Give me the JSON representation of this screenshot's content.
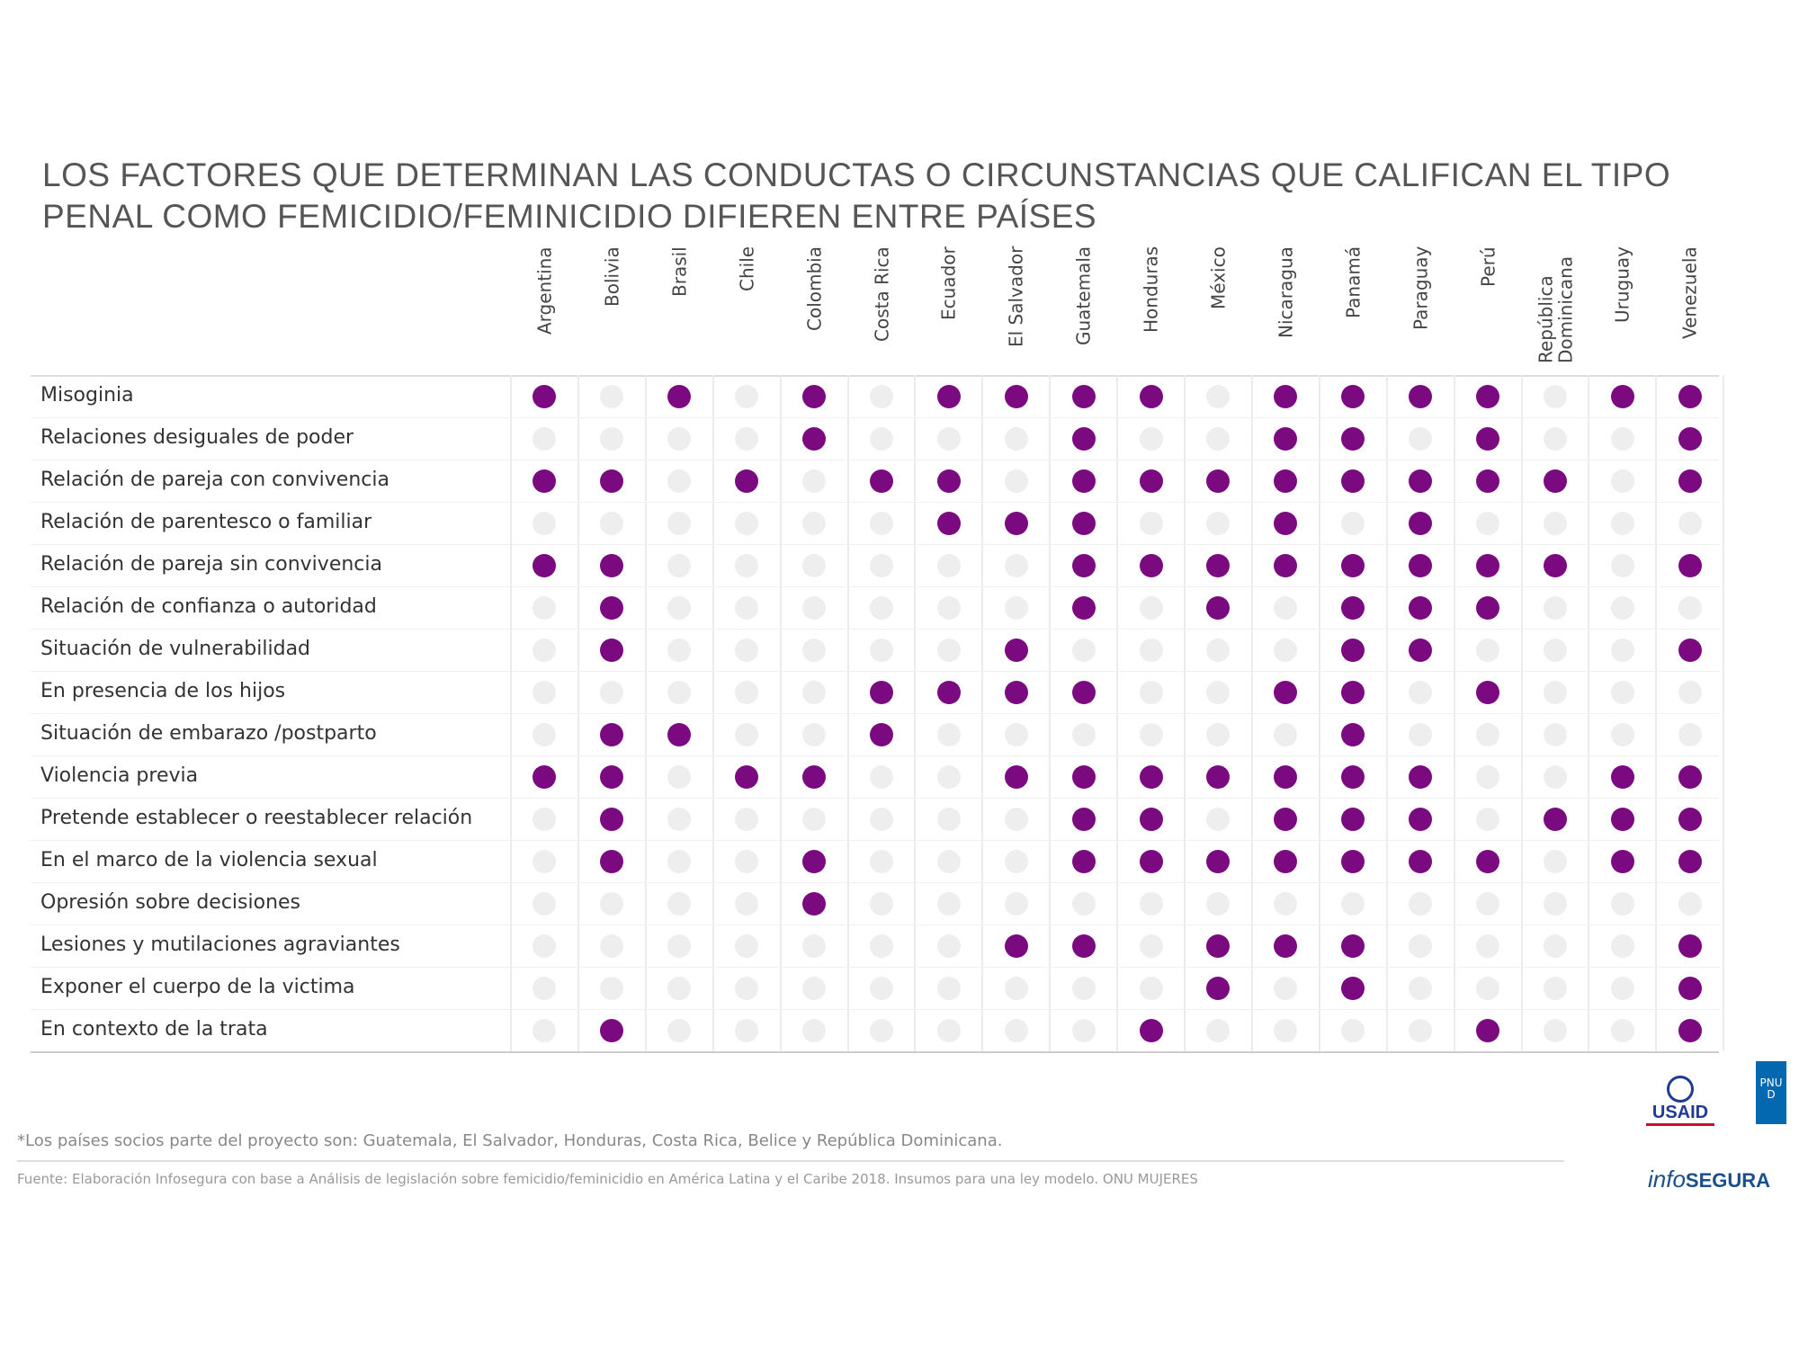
{
  "chart_data": {
    "type": "dot-matrix",
    "title": "LOS FACTORES QUE DETERMINAN LAS CONDUCTAS O CIRCUNSTANCIAS QUE CALIFICAN EL TIPO PENAL COMO FEMICIDIO/FEMINICIDIO DIFIEREN ENTRE PAÍSES",
    "columns": [
      "Argentina",
      "Bolivia",
      "Brasil",
      "Chile",
      "Colombia",
      "Costa Rica",
      "Ecuador",
      "El Salvador",
      "Guatemala",
      "Honduras",
      "México",
      "Nicaragua",
      "Panamá",
      "Paraguay",
      "Perú",
      "República Dominicana",
      "Uruguay",
      "Venezuela"
    ],
    "rows": [
      "Misoginia",
      "Relaciones desiguales de poder",
      "Relación de pareja con convivencia",
      "Relación de parentesco o familiar",
      "Relación de pareja sin convivencia",
      "Relación de confianza o autoridad",
      "Situación de vulnerabilidad",
      "En presencia de los hijos",
      "Situación de embarazo /postparto",
      "Violencia previa",
      "Pretende establecer o reestablecer relación",
      "En el marco de la violencia sexual",
      "Opresión sobre decisiones",
      "Lesiones y mutilaciones agraviantes",
      "Exponer el cuerpo de la victima",
      "En contexto de la trata"
    ],
    "values": [
      [
        1,
        0,
        1,
        0,
        1,
        0,
        1,
        1,
        1,
        1,
        0,
        1,
        1,
        1,
        1,
        0,
        1,
        1
      ],
      [
        0,
        0,
        0,
        0,
        1,
        0,
        0,
        0,
        1,
        0,
        0,
        1,
        1,
        0,
        1,
        0,
        0,
        1
      ],
      [
        1,
        1,
        0,
        1,
        0,
        1,
        1,
        0,
        1,
        1,
        1,
        1,
        1,
        1,
        1,
        1,
        0,
        1
      ],
      [
        0,
        0,
        0,
        0,
        0,
        0,
        1,
        1,
        1,
        0,
        0,
        1,
        0,
        1,
        0,
        0,
        0,
        0
      ],
      [
        1,
        1,
        0,
        0,
        0,
        0,
        0,
        0,
        1,
        1,
        1,
        1,
        1,
        1,
        1,
        1,
        0,
        1
      ],
      [
        0,
        1,
        0,
        0,
        0,
        0,
        0,
        0,
        1,
        0,
        1,
        0,
        1,
        1,
        1,
        0,
        0,
        0
      ],
      [
        0,
        1,
        0,
        0,
        0,
        0,
        0,
        1,
        0,
        0,
        0,
        0,
        1,
        1,
        0,
        0,
        0,
        1
      ],
      [
        0,
        0,
        0,
        0,
        0,
        1,
        1,
        1,
        1,
        0,
        0,
        1,
        1,
        0,
        1,
        0,
        0,
        0
      ],
      [
        0,
        1,
        1,
        0,
        0,
        1,
        0,
        0,
        0,
        0,
        0,
        0,
        1,
        0,
        0,
        0,
        0,
        0
      ],
      [
        1,
        1,
        0,
        1,
        1,
        0,
        0,
        1,
        1,
        1,
        1,
        1,
        1,
        1,
        0,
        0,
        1,
        1
      ],
      [
        0,
        1,
        0,
        0,
        0,
        0,
        0,
        0,
        1,
        1,
        0,
        1,
        1,
        1,
        0,
        1,
        1,
        1
      ],
      [
        0,
        1,
        0,
        0,
        1,
        0,
        0,
        0,
        1,
        1,
        1,
        1,
        1,
        1,
        1,
        0,
        1,
        1
      ],
      [
        0,
        0,
        0,
        0,
        1,
        0,
        0,
        0,
        0,
        0,
        0,
        0,
        0,
        0,
        0,
        0,
        0,
        0
      ],
      [
        0,
        0,
        0,
        0,
        0,
        0,
        0,
        1,
        1,
        0,
        1,
        1,
        1,
        0,
        0,
        0,
        0,
        1
      ],
      [
        0,
        0,
        0,
        0,
        0,
        0,
        0,
        0,
        0,
        0,
        1,
        0,
        1,
        0,
        0,
        0,
        0,
        1
      ],
      [
        0,
        1,
        0,
        0,
        0,
        0,
        0,
        0,
        0,
        1,
        0,
        0,
        0,
        0,
        1,
        0,
        0,
        1
      ]
    ],
    "color": "#7b0a80",
    "empty_color": "#eeeeee",
    "footnote": "*Los países socios parte del proyecto son: Guatemala, El Salvador, Honduras, Costa Rica, Belice y República Dominicana.",
    "source": "Fuente: Elaboración Infosegura con base a Análisis de legislación sobre femicidio/feminicidio en América Latina y el Caribe 2018. Insumos para una ley modelo. ONU MUJERES",
    "logos": [
      "USAID",
      "PNUD",
      "info",
      "SEGURA"
    ]
  }
}
